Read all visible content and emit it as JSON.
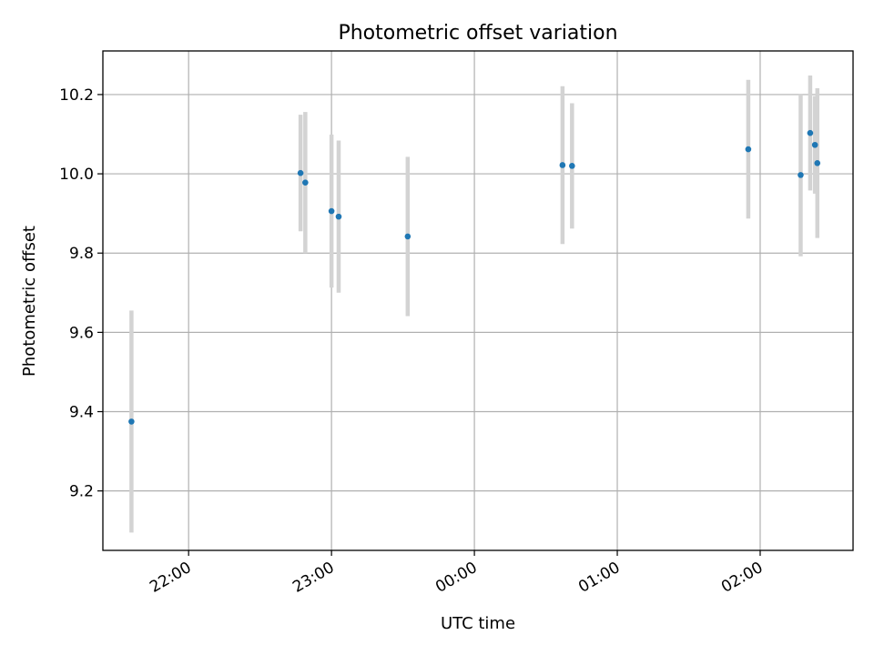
{
  "chart_data": {
    "type": "scatter",
    "title": "Photometric offset variation",
    "xlabel": "UTC time",
    "ylabel": "Photometric offset",
    "x_axis_type": "time",
    "xlim": [
      "21:24",
      "02:39"
    ],
    "ylim": [
      9.05,
      10.31
    ],
    "grid": true,
    "x_ticks": [
      "22:00",
      "23:00",
      "00:00",
      "01:00",
      "02:00"
    ],
    "y_ticks": [
      "9.2",
      "9.4",
      "9.6",
      "9.8",
      "10.0",
      "10.2"
    ],
    "y_tick_values": [
      9.2,
      9.4,
      9.6,
      9.8,
      10.0,
      10.2
    ],
    "points_color": "#1f77b4",
    "errorbar_color": "#d3d3d3",
    "points": [
      {
        "time": "21:36",
        "y": 9.375,
        "lo": 9.095,
        "hi": 9.655
      },
      {
        "time": "22:47",
        "y": 10.002,
        "lo": 9.855,
        "hi": 10.149
      },
      {
        "time": "22:49",
        "y": 9.978,
        "lo": 9.8,
        "hi": 10.156
      },
      {
        "time": "23:00",
        "y": 9.906,
        "lo": 9.713,
        "hi": 10.099
      },
      {
        "time": "23:03",
        "y": 9.892,
        "lo": 9.7,
        "hi": 10.084
      },
      {
        "time": "23:32",
        "y": 9.842,
        "lo": 9.641,
        "hi": 10.043
      },
      {
        "time": "00:37",
        "y": 10.022,
        "lo": 9.823,
        "hi": 10.221
      },
      {
        "time": "00:41",
        "y": 10.02,
        "lo": 9.862,
        "hi": 10.178
      },
      {
        "time": "01:55",
        "y": 10.062,
        "lo": 9.887,
        "hi": 10.237
      },
      {
        "time": "02:17",
        "y": 9.997,
        "lo": 9.792,
        "hi": 10.202
      },
      {
        "time": "02:21",
        "y": 10.103,
        "lo": 9.958,
        "hi": 10.248
      },
      {
        "time": "02:23",
        "y": 10.073,
        "lo": 9.95,
        "hi": 10.196
      },
      {
        "time": "02:24",
        "y": 10.027,
        "lo": 9.838,
        "hi": 10.216
      }
    ]
  }
}
